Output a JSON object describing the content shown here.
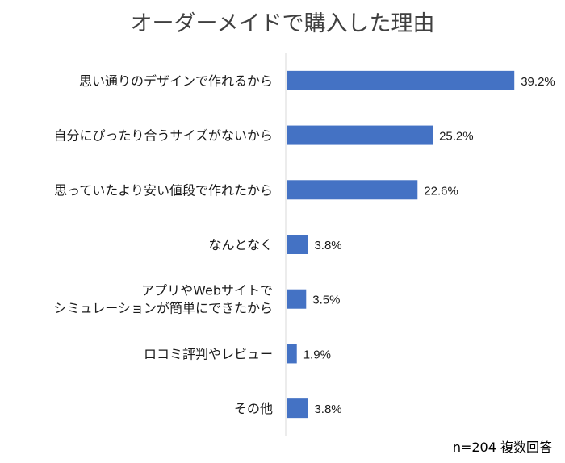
{
  "chart_data": {
    "type": "bar",
    "orientation": "horizontal",
    "title": "オーダーメイドで購入した理由",
    "categories": [
      [
        "思い通りのデザインで作れるから"
      ],
      [
        "自分にぴったり合うサイズがないから"
      ],
      [
        "思っていたより安い値段で作れたから"
      ],
      [
        "なんとなく"
      ],
      [
        "アプリやWebサイトで",
        "シミュレーションが簡単にできたから"
      ],
      [
        "ロコミ評判やレビュー"
      ],
      [
        "その他"
      ]
    ],
    "values": [
      39.2,
      25.2,
      22.6,
      3.8,
      3.5,
      1.9,
      3.8
    ],
    "value_labels": [
      "39.2%",
      "25.2%",
      "22.6%",
      "3.8%",
      "3.5%",
      "1.9%",
      "3.8%"
    ],
    "xlim": [
      0,
      40
    ],
    "grid": false,
    "bar_color": "#4472C4",
    "axis_color": "#d9d9d9",
    "note": "n=204 複数回答"
  }
}
